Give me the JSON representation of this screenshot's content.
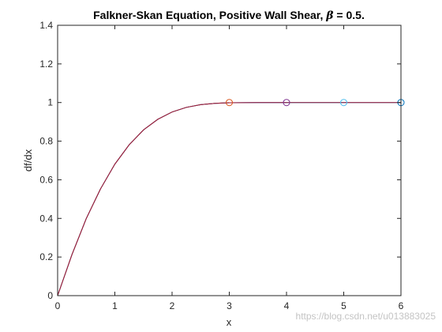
{
  "chart_data": {
    "type": "line",
    "title": {
      "prefix": "Falkner-Skan Equation, Positive Wall Shear, ",
      "symbol": "β",
      "suffix": " = 0.5."
    },
    "xlabel": "x",
    "ylabel": "df/dx",
    "xlim": [
      0,
      6
    ],
    "ylim": [
      0,
      1.4
    ],
    "xticks": [
      0,
      1,
      2,
      3,
      4,
      5,
      6
    ],
    "xtick_labels": [
      "0",
      "1",
      "2",
      "3",
      "4",
      "5",
      "6"
    ],
    "yticks": [
      0,
      0.2,
      0.4,
      0.6,
      0.8,
      1,
      1.2,
      1.4
    ],
    "ytick_labels": [
      "0",
      "0.2",
      "0.4",
      "0.6",
      "0.8",
      "1",
      "1.2",
      "1.4"
    ],
    "grid": false,
    "box": true,
    "series": [
      {
        "color": "#0072bd",
        "x": [
          0,
          0.25,
          0.5,
          0.75,
          1,
          1.25,
          1.5,
          1.75,
          2,
          2.25,
          2.5,
          2.75,
          3,
          3.5,
          4,
          4.5,
          5,
          5.5,
          6
        ],
        "y": [
          0,
          0.212,
          0.399,
          0.553,
          0.681,
          0.781,
          0.858,
          0.913,
          0.951,
          0.975,
          0.989,
          0.996,
          0.999,
          1.0,
          1.0,
          1.0,
          1.0,
          1.0,
          1.0
        ],
        "end_marker": {
          "x": 6,
          "y": 1
        }
      },
      {
        "color": "#7e2f8e",
        "x": [
          0,
          0.25,
          0.5,
          0.75,
          1,
          1.25,
          1.5,
          1.75,
          2,
          2.25,
          2.5,
          2.75,
          3,
          3.5,
          4
        ],
        "y": [
          0,
          0.212,
          0.399,
          0.553,
          0.681,
          0.781,
          0.858,
          0.913,
          0.951,
          0.975,
          0.989,
          0.996,
          0.999,
          1.0,
          1.0
        ],
        "end_marker": {
          "x": 4,
          "y": 1
        }
      },
      {
        "color": "#d95319",
        "x": [
          0,
          0.25,
          0.5,
          0.75,
          1,
          1.25,
          1.5,
          1.75,
          2,
          2.25,
          2.5,
          2.75,
          3
        ],
        "y": [
          0,
          0.212,
          0.399,
          0.553,
          0.681,
          0.781,
          0.858,
          0.913,
          0.951,
          0.975,
          0.989,
          0.996,
          1.0
        ],
        "end_marker": {
          "x": 3,
          "y": 1
        }
      },
      {
        "color": "#4dbeee",
        "x": [
          0,
          0.25,
          0.5,
          0.75,
          1,
          1.25,
          1.5,
          1.75,
          2,
          2.25,
          2.5,
          2.75,
          3,
          3.5,
          4,
          4.5,
          5
        ],
        "y": [
          0,
          0.212,
          0.399,
          0.553,
          0.681,
          0.781,
          0.858,
          0.913,
          0.951,
          0.975,
          0.989,
          0.996,
          0.999,
          1.0,
          1.0,
          1.0,
          1.0
        ],
        "end_marker": {
          "x": 5,
          "y": 1
        }
      },
      {
        "color": "#a2142f",
        "x": [
          0,
          0.25,
          0.5,
          0.75,
          1,
          1.25,
          1.5,
          1.75,
          2,
          2.25,
          2.5,
          2.75,
          3,
          3.5,
          4,
          4.5,
          5,
          5.5,
          6
        ],
        "y": [
          0,
          0.212,
          0.399,
          0.553,
          0.681,
          0.781,
          0.858,
          0.913,
          0.951,
          0.975,
          0.989,
          0.996,
          0.999,
          1.0,
          1.0,
          1.0,
          1.0,
          1.0,
          1.0
        ]
      }
    ]
  },
  "watermark": "https://blog.csdn.net/u013883025"
}
